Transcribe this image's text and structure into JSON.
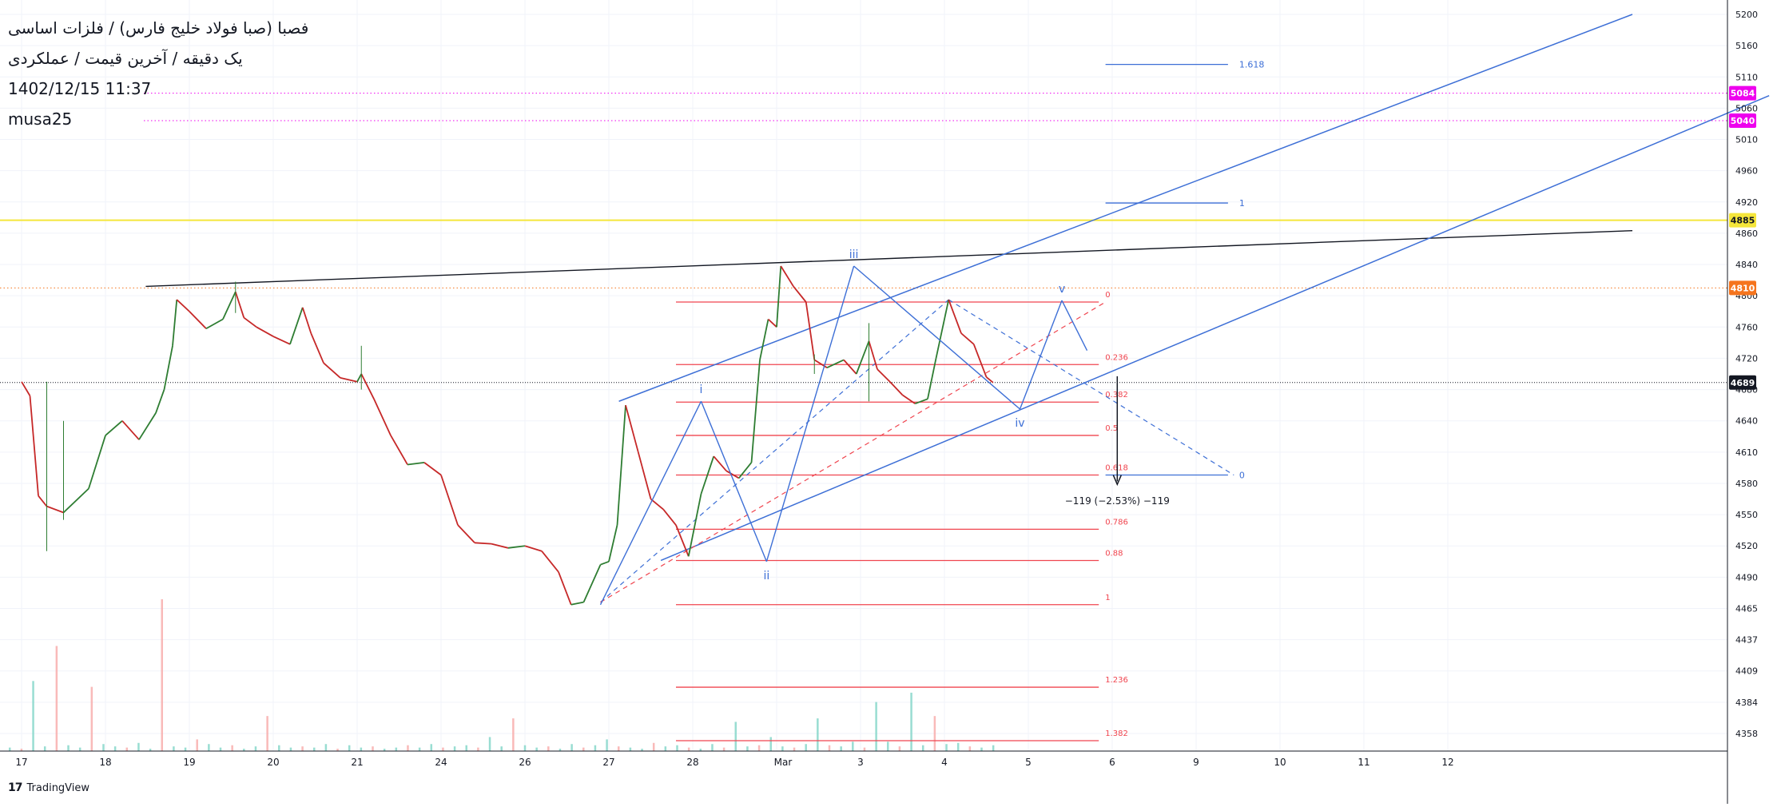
{
  "legend": {
    "line1": "فصبا (صبا فولاد خلیج فارس) / فلزات اساسی",
    "line2": "یک دقیقه / آخرین قیمت / عملکردی",
    "line3": "1402/12/15 11:37",
    "line4": "musa25"
  },
  "brand": {
    "icon": "tradingview-logo-icon",
    "name": "TradingView"
  },
  "colors": {
    "candle_up": "#2e7d32",
    "candle_down": "#c62828",
    "wave": "#3d6fd6",
    "fib": "#f0454f",
    "trend_black": "#131722",
    "yellow_line": "#f5e63b",
    "orange_line": "#f5741d",
    "magenta": "#ee00ee"
  },
  "chart_data": {
    "type": "candlestick",
    "x_labels": [
      "17",
      "18",
      "19",
      "20",
      "21",
      "24",
      "26",
      "27",
      "28",
      "Mar",
      "3",
      "4",
      "5",
      "6",
      "9",
      "10",
      "11",
      "12"
    ],
    "y_ticks": [
      5200,
      5160,
      5110,
      5060,
      5010,
      4960,
      4920,
      4860,
      4840,
      4800,
      4760,
      4720,
      4680,
      4640,
      4610,
      4580,
      4550,
      4520,
      4490,
      4465,
      4437,
      4409,
      4384,
      4358
    ],
    "price_tags": [
      {
        "value": 5084,
        "label": "5084",
        "color": "#ee00ee"
      },
      {
        "value": 5040,
        "label": "5040",
        "color": "#ee00ee"
      },
      {
        "value": 4885,
        "label": "4885",
        "color": "#f5e63b"
      },
      {
        "value": 4810,
        "label": "4810",
        "color": "#f5741d"
      },
      {
        "value": 4689,
        "label": "4689",
        "color": "#131722"
      }
    ],
    "current_price": 4689,
    "price_path": [
      [
        0,
        4690
      ],
      [
        0.1,
        4672
      ],
      [
        0.2,
        4568
      ],
      [
        0.3,
        4558
      ],
      [
        0.5,
        4552
      ],
      [
        0.8,
        4575
      ],
      [
        1.0,
        4626
      ],
      [
        1.2,
        4640
      ],
      [
        1.4,
        4622
      ],
      [
        1.6,
        4650
      ],
      [
        1.7,
        4680
      ],
      [
        1.8,
        4736
      ],
      [
        1.85,
        4795
      ],
      [
        2.0,
        4780
      ],
      [
        2.2,
        4758
      ],
      [
        2.4,
        4770
      ],
      [
        2.55,
        4805
      ],
      [
        2.65,
        4772
      ],
      [
        2.8,
        4760
      ],
      [
        3.0,
        4748
      ],
      [
        3.2,
        4738
      ],
      [
        3.35,
        4785
      ],
      [
        3.45,
        4752
      ],
      [
        3.6,
        4714
      ],
      [
        3.8,
        4695
      ],
      [
        4.0,
        4690
      ],
      [
        4.05,
        4700
      ],
      [
        4.2,
        4668
      ],
      [
        4.4,
        4626
      ],
      [
        4.6,
        4598
      ],
      [
        4.8,
        4600
      ],
      [
        5.0,
        4588
      ],
      [
        5.2,
        4540
      ],
      [
        5.4,
        4523
      ],
      [
        5.6,
        4522
      ],
      [
        5.8,
        4518
      ],
      [
        6.0,
        4520
      ],
      [
        6.2,
        4515
      ],
      [
        6.4,
        4495
      ],
      [
        6.55,
        4468
      ],
      [
        6.7,
        4470
      ],
      [
        6.9,
        4502
      ],
      [
        7.0,
        4505
      ],
      [
        7.1,
        4540
      ],
      [
        7.2,
        4660
      ],
      [
        7.35,
        4610
      ],
      [
        7.5,
        4565
      ],
      [
        7.65,
        4555
      ],
      [
        7.8,
        4540
      ],
      [
        7.95,
        4510
      ],
      [
        8.1,
        4570
      ],
      [
        8.25,
        4606
      ],
      [
        8.4,
        4592
      ],
      [
        8.55,
        4585
      ],
      [
        8.7,
        4600
      ],
      [
        8.8,
        4718
      ],
      [
        8.9,
        4770
      ],
      [
        9.0,
        4760
      ],
      [
        9.05,
        4838
      ],
      [
        9.2,
        4812
      ],
      [
        9.35,
        4792
      ],
      [
        9.45,
        4718
      ],
      [
        9.6,
        4708
      ],
      [
        9.8,
        4718
      ],
      [
        9.95,
        4700
      ],
      [
        10.1,
        4742
      ],
      [
        10.2,
        4706
      ],
      [
        10.35,
        4690
      ],
      [
        10.5,
        4673
      ],
      [
        10.65,
        4662
      ],
      [
        10.8,
        4668
      ],
      [
        10.9,
        4720
      ],
      [
        11.05,
        4795
      ],
      [
        11.2,
        4752
      ],
      [
        11.35,
        4738
      ],
      [
        11.5,
        4696
      ],
      [
        11.58,
        4689
      ]
    ],
    "volume": [
      3,
      2,
      60,
      4,
      90,
      5,
      3,
      55,
      6,
      4,
      3,
      7,
      2,
      130,
      4,
      3,
      10,
      6,
      3,
      5,
      2,
      4,
      30,
      5,
      3,
      4,
      3,
      6,
      2,
      5,
      3,
      4,
      2,
      3,
      5,
      3,
      6,
      3,
      4,
      5,
      3,
      12,
      4,
      28,
      5,
      3,
      4,
      2,
      6,
      3,
      5,
      10,
      4,
      3,
      2,
      7,
      4,
      5,
      3,
      2,
      6,
      3,
      25,
      4,
      5,
      12,
      4,
      3,
      6,
      28,
      5,
      4,
      8,
      3,
      42,
      8,
      4,
      50,
      5,
      30,
      6,
      7,
      4,
      3,
      5
    ],
    "elliott_labels": [
      "i",
      "ii",
      "iii",
      "iv",
      "v"
    ],
    "fib_levels": [
      {
        "ratio": 0,
        "value": 4792
      },
      {
        "ratio": 0.236,
        "value": 4712
      },
      {
        "ratio": 0.382,
        "value": 4664
      },
      {
        "ratio": 0.5,
        "value": 4626
      },
      {
        "ratio": 0.618,
        "value": 4588
      },
      {
        "ratio": 0.786,
        "value": 4536
      },
      {
        "ratio": 0.88,
        "value": 4506
      },
      {
        "ratio": 1,
        "value": 4468
      },
      {
        "ratio": 1.236,
        "value": 4396
      },
      {
        "ratio": 1.382,
        "value": 4352
      }
    ],
    "ext_levels": [
      {
        "label": "1.618",
        "value": 5130
      },
      {
        "label": "1",
        "value": 4918
      },
      {
        "label": "0",
        "value": 4588
      }
    ],
    "measure_text": "−119 (−2.53%) −119"
  }
}
